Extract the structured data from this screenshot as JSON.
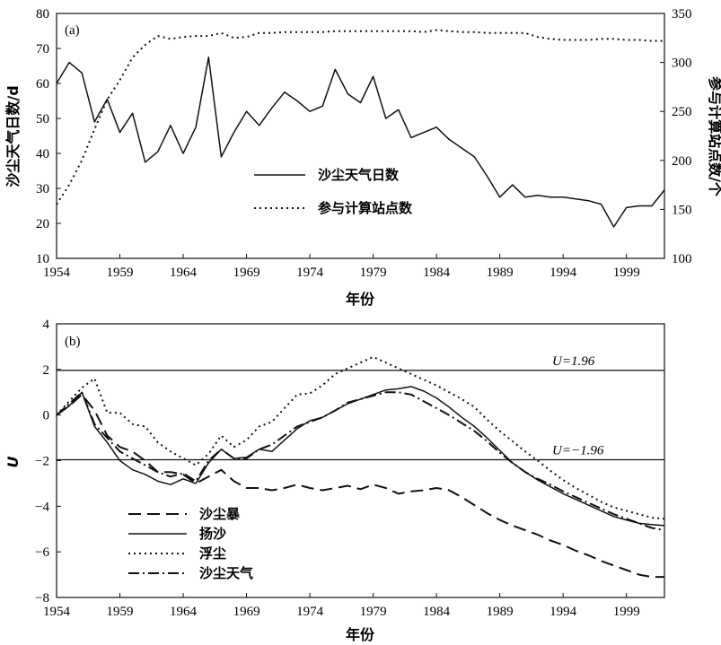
{
  "chart_data": [
    {
      "type": "line",
      "panel_label": "(a)",
      "xlabel": "年份",
      "ylabel": "沙尘天气日数/d",
      "y2label": "参与计算站点数/个",
      "xlim": [
        1954,
        2002
      ],
      "ylim": [
        10,
        80
      ],
      "y2lim": [
        100,
        350
      ],
      "xticks": [
        1954,
        1959,
        1964,
        1969,
        1974,
        1979,
        1984,
        1989,
        1994,
        1999
      ],
      "yticks": [
        10,
        20,
        30,
        40,
        50,
        60,
        70,
        80
      ],
      "y2ticks": [
        100,
        150,
        200,
        250,
        300,
        350
      ],
      "legend_position": "center",
      "series": [
        {
          "name": "沙尘天气日数",
          "style": "solid",
          "axis": "left",
          "x": [
            1954,
            1955,
            1956,
            1957,
            1958,
            1959,
            1960,
            1961,
            1962,
            1963,
            1964,
            1965,
            1966,
            1967,
            1968,
            1969,
            1970,
            1971,
            1972,
            1973,
            1974,
            1975,
            1976,
            1977,
            1978,
            1979,
            1980,
            1981,
            1982,
            1983,
            1984,
            1985,
            1986,
            1987,
            1988,
            1989,
            1990,
            1991,
            1992,
            1993,
            1994,
            1995,
            1996,
            1997,
            1998,
            1999,
            2000,
            2001,
            2002
          ],
          "y": [
            60,
            66,
            63,
            49,
            55.5,
            46,
            51.5,
            37.5,
            40.5,
            48,
            40,
            47.5,
            67.5,
            39,
            46,
            52,
            48,
            53,
            57.5,
            55,
            52,
            53.5,
            64,
            57,
            54.5,
            62,
            50,
            52.5,
            44.5,
            46,
            47.5,
            44,
            41.5,
            39,
            33.5,
            27.5,
            31,
            27.5,
            28,
            27.5,
            27.5,
            27,
            26.5,
            25.5,
            19,
            24.5,
            25,
            25,
            29.5
          ]
        },
        {
          "name": "参与计算站点数",
          "style": "dotted",
          "axis": "right",
          "x": [
            1954,
            1955,
            1956,
            1957,
            1958,
            1959,
            1960,
            1961,
            1962,
            1963,
            1964,
            1965,
            1966,
            1967,
            1968,
            1969,
            1970,
            1971,
            1972,
            1973,
            1974,
            1975,
            1976,
            1977,
            1978,
            1979,
            1980,
            1981,
            1982,
            1983,
            1984,
            1985,
            1986,
            1987,
            1988,
            1989,
            1990,
            1991,
            1992,
            1993,
            1994,
            1995,
            1996,
            1997,
            1998,
            1999,
            2000,
            2001,
            2002
          ],
          "y": [
            155,
            175,
            200,
            232,
            262,
            282,
            305,
            318,
            327,
            324,
            326,
            327,
            327,
            330,
            325,
            326,
            330,
            330,
            331,
            331,
            331,
            331,
            332,
            332,
            332,
            332,
            332,
            332,
            332,
            331,
            333,
            332,
            331,
            331,
            330,
            330,
            330,
            330,
            326,
            324,
            323,
            323,
            323,
            324,
            324,
            323,
            323,
            322,
            322
          ]
        }
      ]
    },
    {
      "type": "line",
      "panel_label": "(b)",
      "xlabel": "年份",
      "ylabel": "U",
      "xlim": [
        1954,
        2002
      ],
      "ylim": [
        -8,
        4
      ],
      "xticks": [
        1954,
        1959,
        1964,
        1969,
        1974,
        1979,
        1984,
        1989,
        1994,
        1999
      ],
      "yticks": [
        -8,
        -6,
        -4,
        -2,
        0,
        2,
        4
      ],
      "legend_position": "bottom-left",
      "reference_lines": [
        {
          "y": 1.96,
          "label": "U=1.96"
        },
        {
          "y": -1.96,
          "label": "U=−1.96"
        }
      ],
      "series": [
        {
          "name": "沙尘暴",
          "style": "dashed",
          "x": [
            1954,
            1955,
            1956,
            1957,
            1958,
            1959,
            1960,
            1961,
            1962,
            1963,
            1964,
            1965,
            1966,
            1967,
            1968,
            1969,
            1970,
            1971,
            1972,
            1973,
            1974,
            1975,
            1976,
            1977,
            1978,
            1979,
            1980,
            1981,
            1982,
            1983,
            1984,
            1985,
            1986,
            1987,
            1988,
            1989,
            1990,
            1991,
            1992,
            1993,
            1994,
            1995,
            1996,
            1997,
            1998,
            1999,
            2000,
            2001,
            2002
          ],
          "y": [
            0,
            0.4,
            0.9,
            0.2,
            -0.9,
            -1.4,
            -1.6,
            -2,
            -2.5,
            -2.5,
            -2.6,
            -3,
            -2.7,
            -2.4,
            -2.9,
            -3.2,
            -3.2,
            -3.3,
            -3.2,
            -3.05,
            -3.2,
            -3.3,
            -3.2,
            -3.1,
            -3.25,
            -3.05,
            -3.2,
            -3.45,
            -3.35,
            -3.3,
            -3.2,
            -3.3,
            -3.6,
            -3.95,
            -4.3,
            -4.6,
            -4.85,
            -5.05,
            -5.25,
            -5.5,
            -5.7,
            -5.95,
            -6.15,
            -6.4,
            -6.6,
            -6.8,
            -7,
            -7.1,
            -7.1
          ]
        },
        {
          "name": "扬沙",
          "style": "solid",
          "x": [
            1954,
            1955,
            1956,
            1957,
            1958,
            1959,
            1960,
            1961,
            1962,
            1963,
            1964,
            1965,
            1966,
            1967,
            1968,
            1969,
            1970,
            1971,
            1972,
            1973,
            1974,
            1975,
            1976,
            1977,
            1978,
            1979,
            1980,
            1981,
            1982,
            1983,
            1984,
            1985,
            1986,
            1987,
            1988,
            1989,
            1990,
            1991,
            1992,
            1993,
            1994,
            1995,
            1996,
            1997,
            1998,
            1999,
            2000,
            2001,
            2002
          ],
          "y": [
            0,
            0.4,
            1,
            -0.5,
            -1.2,
            -2,
            -2.4,
            -2.6,
            -2.9,
            -3.05,
            -2.8,
            -3,
            -2.1,
            -1.5,
            -1.9,
            -1.85,
            -1.5,
            -1.6,
            -1.1,
            -0.6,
            -0.25,
            -0.1,
            0.2,
            0.5,
            0.7,
            0.9,
            1.1,
            1.15,
            1.25,
            1.05,
            0.75,
            0.35,
            -0.1,
            -0.5,
            -1,
            -1.55,
            -2.1,
            -2.5,
            -2.85,
            -3.15,
            -3.45,
            -3.7,
            -3.95,
            -4.2,
            -4.45,
            -4.6,
            -4.75,
            -4.8,
            -4.85
          ]
        },
        {
          "name": "浮尘",
          "style": "dotted",
          "x": [
            1954,
            1955,
            1956,
            1957,
            1958,
            1959,
            1960,
            1961,
            1962,
            1963,
            1964,
            1965,
            1966,
            1967,
            1968,
            1969,
            1970,
            1971,
            1972,
            1973,
            1974,
            1975,
            1976,
            1977,
            1978,
            1979,
            1980,
            1981,
            1982,
            1983,
            1984,
            1985,
            1986,
            1987,
            1988,
            1989,
            1990,
            1991,
            1992,
            1993,
            1994,
            1995,
            1996,
            1997,
            1998,
            1999,
            2000,
            2001,
            2002
          ],
          "y": [
            0,
            0.6,
            1.2,
            1.6,
            0.1,
            0.1,
            -0.4,
            -0.5,
            -1.2,
            -1.6,
            -1.9,
            -2.2,
            -1.7,
            -0.9,
            -1.4,
            -1.1,
            -0.5,
            -0.3,
            0.3,
            0.9,
            0.95,
            1.3,
            1.8,
            2.05,
            2.3,
            2.55,
            2.3,
            2.05,
            1.8,
            1.55,
            1.3,
            1,
            0.7,
            0.35,
            -0.2,
            -0.7,
            -1.15,
            -1.6,
            -2,
            -2.45,
            -2.85,
            -3.2,
            -3.5,
            -3.8,
            -4.05,
            -4.2,
            -4.35,
            -4.5,
            -4.55
          ]
        },
        {
          "name": "沙尘天气",
          "style": "dashdot",
          "x": [
            1954,
            1955,
            1956,
            1957,
            1958,
            1959,
            1960,
            1961,
            1962,
            1963,
            1964,
            1965,
            1966,
            1967,
            1968,
            1969,
            1970,
            1971,
            1972,
            1973,
            1974,
            1975,
            1976,
            1977,
            1978,
            1979,
            1980,
            1981,
            1982,
            1983,
            1984,
            1985,
            1986,
            1987,
            1988,
            1989,
            1990,
            1991,
            1992,
            1993,
            1994,
            1995,
            1996,
            1997,
            1998,
            1999,
            2000,
            2001,
            2002
          ],
          "y": [
            0,
            0.5,
            1,
            -0.4,
            -1,
            -1.6,
            -1.9,
            -2.2,
            -2.5,
            -2.7,
            -2.55,
            -2.9,
            -2,
            -1.5,
            -1.9,
            -1.9,
            -1.5,
            -1.3,
            -0.9,
            -0.5,
            -0.3,
            -0.1,
            0.2,
            0.55,
            0.7,
            0.85,
            1,
            1,
            0.9,
            0.6,
            0.3,
            0,
            -0.35,
            -0.7,
            -1.15,
            -1.65,
            -2.1,
            -2.5,
            -2.8,
            -3.05,
            -3.35,
            -3.6,
            -3.85,
            -4.1,
            -4.35,
            -4.55,
            -4.75,
            -4.95,
            -5.05
          ]
        }
      ]
    }
  ]
}
